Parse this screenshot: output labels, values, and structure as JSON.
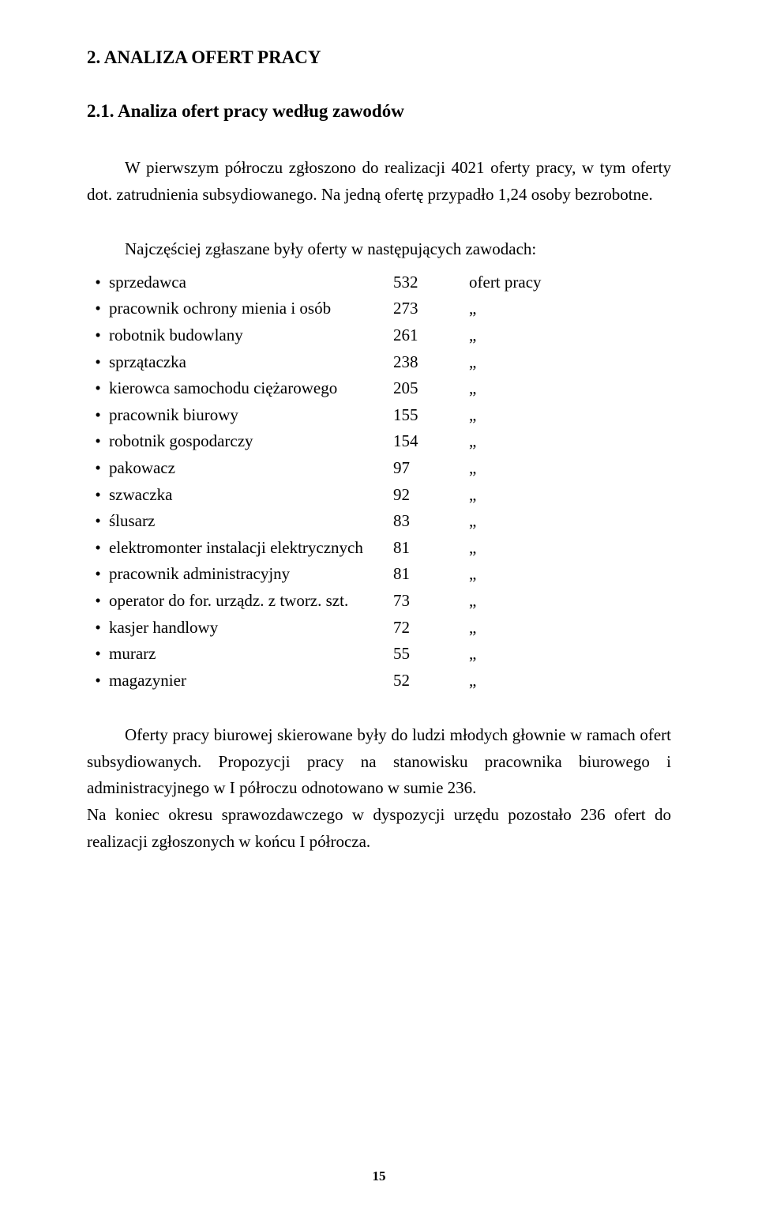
{
  "heading1": "2. ANALIZA OFERT PRACY",
  "heading2": "2.1. Analiza ofert pracy według zawodów",
  "intro": "W pierwszym półroczu zgłoszono do realizacji 4021 oferty pracy, w tym oferty dot. zatrudnienia subsydiowanego. Na jedną ofertę przypadło 1,24 osoby bezrobotne.",
  "listIntro": "Najczęściej zgłaszane były oferty w następujących zawodach:",
  "unitFirst": "ofert pracy",
  "unitRest": "„",
  "items": [
    {
      "label": "sprzedawca",
      "value": "532"
    },
    {
      "label": "pracownik ochrony mienia i osób",
      "value": "273"
    },
    {
      "label": "robotnik budowlany",
      "value": "261"
    },
    {
      "label": "sprzątaczka",
      "value": "238"
    },
    {
      "label": "kierowca samochodu ciężarowego",
      "value": "205"
    },
    {
      "label": "pracownik biurowy",
      "value": "155"
    },
    {
      "label": "robotnik gospodarczy",
      "value": "154"
    },
    {
      "label": "pakowacz",
      "value": "97"
    },
    {
      "label": "szwaczka",
      "value": "92"
    },
    {
      "label": "ślusarz",
      "value": "83"
    },
    {
      "label": "elektromonter instalacji elektrycznych",
      "value": "81"
    },
    {
      "label": "pracownik administracyjny",
      "value": "81"
    },
    {
      "label": "operator do for. urządz. z tworz. szt.",
      "value": "73"
    },
    {
      "label": "kasjer handlowy",
      "value": "72"
    },
    {
      "label": "murarz",
      "value": "55"
    },
    {
      "label": "magazynier",
      "value": "52"
    }
  ],
  "para3": "Oferty pracy biurowej skierowane były do ludzi młodych głownie w ramach ofert subsydiowanych. Propozycji pracy na stanowisku pracownika biurowego i administracyjnego w I półroczu odnotowano w sumie 236.",
  "para4": "Na koniec okresu sprawozdawczego w dyspozycji urzędu pozostało 236 ofert do realizacji zgłoszonych w końcu I półrocza.",
  "pageNumber": "15"
}
